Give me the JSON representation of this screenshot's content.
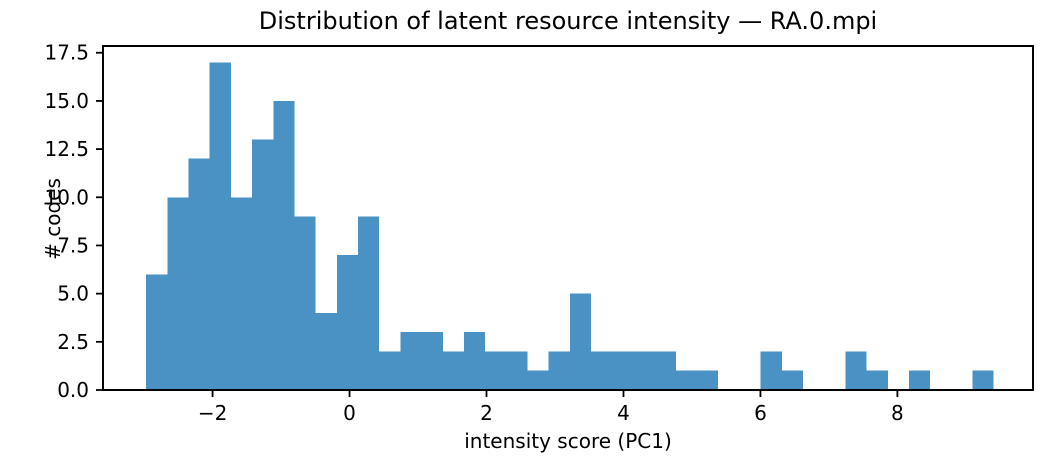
{
  "chart_data": {
    "type": "bar",
    "subtype": "histogram",
    "title": "Distribution of latent resource intensity — RA.0.mpi",
    "xlabel": "intensity score (PC1)",
    "ylabel": "# codes",
    "bin_start": -2.97,
    "bin_width": 0.3094,
    "counts": [
      6,
      10,
      12,
      17,
      10,
      13,
      15,
      9,
      4,
      7,
      9,
      2,
      3,
      3,
      2,
      3,
      2,
      2,
      1,
      2,
      5,
      2,
      2,
      2,
      2,
      1,
      1,
      0,
      0,
      2,
      1,
      0,
      0,
      2,
      1,
      0,
      1,
      0,
      0,
      1
    ],
    "xlim": [
      -3.6,
      9.98
    ],
    "ylim": [
      0,
      17.85
    ],
    "xticks": [
      {
        "v": -2,
        "label": "−2"
      },
      {
        "v": 0,
        "label": "0"
      },
      {
        "v": 2,
        "label": "2"
      },
      {
        "v": 4,
        "label": "4"
      },
      {
        "v": 6,
        "label": "6"
      },
      {
        "v": 8,
        "label": "8"
      }
    ],
    "yticks": [
      {
        "v": 0,
        "label": "0.0"
      },
      {
        "v": 2.5,
        "label": "2.5"
      },
      {
        "v": 5,
        "label": "5.0"
      },
      {
        "v": 7.5,
        "label": "7.5"
      },
      {
        "v": 10,
        "label": "10.0"
      },
      {
        "v": 12.5,
        "label": "12.5"
      },
      {
        "v": 15,
        "label": "15.0"
      },
      {
        "v": 17.5,
        "label": "17.5"
      }
    ],
    "grid": false,
    "legend": null,
    "bar_color": "#4b92c4",
    "axis_color": "#000000",
    "text_color": "#000000"
  }
}
